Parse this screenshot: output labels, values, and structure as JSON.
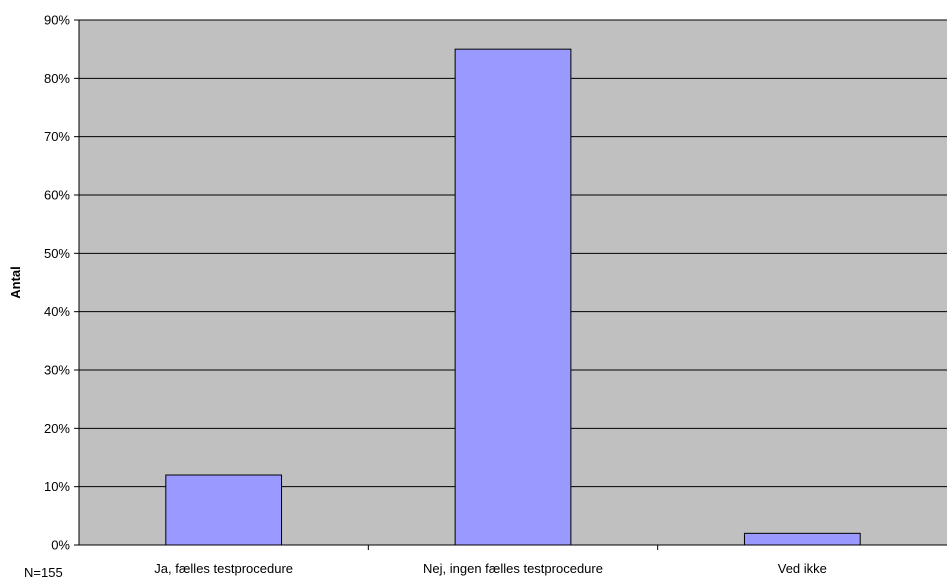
{
  "chart_data": {
    "type": "bar",
    "categories": [
      "Ja, fælles testprocedure",
      "Nej, ingen fælles testprocedure",
      "Ved ikke"
    ],
    "values": [
      12,
      85,
      2
    ],
    "value_unit": "%",
    "ylabel": "Antal",
    "xlabel": "",
    "ylim": [
      0,
      90
    ],
    "ytick_step": 10,
    "yticks": [
      "0%",
      "10%",
      "20%",
      "30%",
      "40%",
      "50%",
      "60%",
      "70%",
      "80%",
      "90%"
    ],
    "grid": true,
    "legend": "none",
    "note": "N=155",
    "colors": {
      "plot_background": "#c0c0c0",
      "bar_fill": "#9999ff",
      "bar_stroke": "#000000",
      "gridline": "#000000"
    }
  }
}
